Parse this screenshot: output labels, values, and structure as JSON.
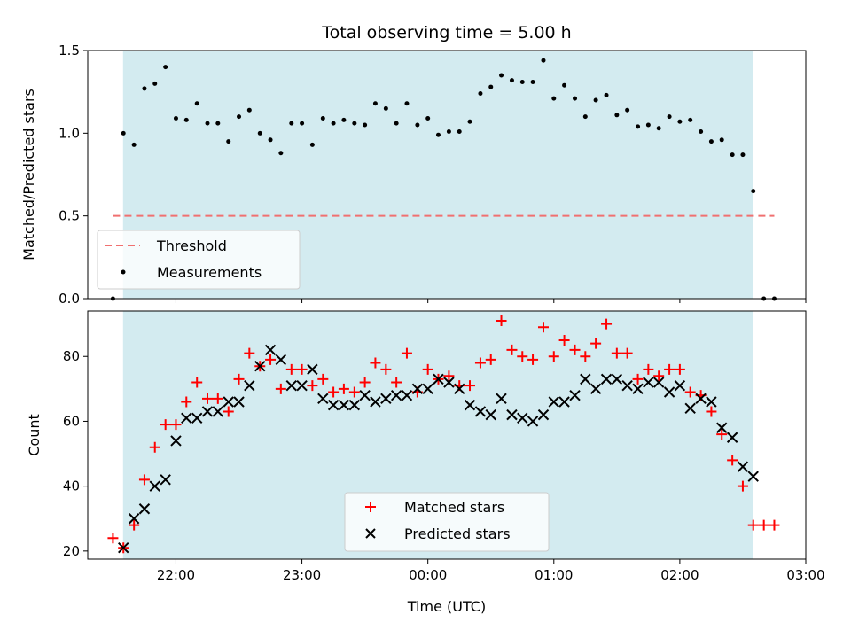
{
  "chart_data": [
    {
      "type": "scatter",
      "panel": "top",
      "title": "Total observing time = 5.00 h",
      "xlabel": "",
      "ylabel": "Matched/Predicted stars",
      "ylim": [
        0,
        1.5
      ],
      "yticks": [
        0,
        0.5,
        1.0,
        1.5
      ],
      "ytick_labels": [
        "0.0",
        "0.5",
        "1.0",
        "1.5"
      ],
      "xlim_hours": [
        21.3,
        27.0
      ],
      "xtick_hours": [
        22,
        23,
        24,
        25,
        26,
        27
      ],
      "shaded_span_hours": [
        21.58,
        26.58
      ],
      "shaded_color": "#d3ebf0",
      "legend_position": "lower-left",
      "threshold": {
        "name": "Threshold",
        "value": 0.5,
        "x_range_hours": [
          21.5,
          26.75
        ],
        "color": "#f07070"
      },
      "series": [
        {
          "name": "Measurements",
          "color": "#000000",
          "x_hours": [
            21.5,
            21.583,
            21.667,
            21.75,
            21.833,
            21.917,
            22.0,
            22.083,
            22.167,
            22.25,
            22.333,
            22.417,
            22.5,
            22.583,
            22.667,
            22.75,
            22.833,
            22.917,
            23.0,
            23.083,
            23.167,
            23.25,
            23.333,
            23.417,
            23.5,
            23.583,
            23.667,
            23.75,
            23.833,
            23.917,
            24.0,
            24.083,
            24.167,
            24.25,
            24.333,
            24.417,
            24.5,
            24.583,
            24.667,
            24.75,
            24.833,
            24.917,
            25.0,
            25.083,
            25.167,
            25.25,
            25.333,
            25.417,
            25.5,
            25.583,
            25.667,
            25.75,
            25.833,
            25.917,
            26.0,
            26.083,
            26.167,
            26.25,
            26.333,
            26.417,
            26.5,
            26.583,
            26.667,
            26.75
          ],
          "y": [
            0.0,
            1.0,
            0.93,
            1.27,
            1.3,
            1.4,
            1.09,
            1.08,
            1.18,
            1.06,
            1.06,
            0.95,
            1.1,
            1.14,
            1.0,
            0.96,
            0.88,
            1.06,
            1.06,
            0.93,
            1.09,
            1.06,
            1.08,
            1.06,
            1.05,
            1.18,
            1.15,
            1.06,
            1.18,
            1.05,
            1.09,
            0.99,
            1.01,
            1.01,
            1.07,
            1.24,
            1.28,
            1.35,
            1.32,
            1.31,
            1.31,
            1.44,
            1.21,
            1.29,
            1.21,
            1.1,
            1.2,
            1.23,
            1.11,
            1.14,
            1.04,
            1.05,
            1.03,
            1.1,
            1.07,
            1.08,
            1.01,
            0.95,
            0.96,
            0.87,
            0.87,
            0.65,
            0.0,
            0.0
          ]
        }
      ]
    },
    {
      "type": "scatter",
      "panel": "bottom",
      "title": "",
      "xlabel": "Time (UTC)",
      "ylabel": "Count",
      "ylim": [
        17.5,
        94
      ],
      "yticks": [
        20,
        40,
        60,
        80
      ],
      "ytick_labels": [
        "20",
        "40",
        "60",
        "80"
      ],
      "xlim_hours": [
        21.3,
        27.0
      ],
      "xtick_hours": [
        22,
        23,
        24,
        25,
        26,
        27
      ],
      "xtick_labels": [
        "22:00",
        "23:00",
        "00:00",
        "01:00",
        "02:00",
        "03:00"
      ],
      "shaded_span_hours": [
        21.58,
        26.58
      ],
      "legend_position": "lower-center",
      "series": [
        {
          "name": "Matched stars",
          "marker": "plus",
          "color": "#ff0000",
          "x_hours": [
            21.5,
            21.583,
            21.667,
            21.75,
            21.833,
            21.917,
            22.0,
            22.083,
            22.167,
            22.25,
            22.333,
            22.417,
            22.5,
            22.583,
            22.667,
            22.75,
            22.833,
            22.917,
            23.0,
            23.083,
            23.167,
            23.25,
            23.333,
            23.417,
            23.5,
            23.583,
            23.667,
            23.75,
            23.833,
            23.917,
            24.0,
            24.083,
            24.167,
            24.25,
            24.333,
            24.417,
            24.5,
            24.583,
            24.667,
            24.75,
            24.833,
            24.917,
            25.0,
            25.083,
            25.167,
            25.25,
            25.333,
            25.417,
            25.5,
            25.583,
            25.667,
            25.75,
            25.833,
            25.917,
            26.0,
            26.083,
            26.167,
            26.25,
            26.333,
            26.417,
            26.5,
            26.583,
            26.667,
            26.75
          ],
          "y": [
            24,
            21,
            28,
            42,
            52,
            59,
            59,
            66,
            72,
            67,
            67,
            63,
            73,
            81,
            77,
            79,
            70,
            76,
            76,
            71,
            73,
            69,
            70,
            69,
            72,
            78,
            76,
            72,
            81,
            69,
            76,
            73,
            74,
            71,
            71,
            78,
            79,
            91,
            82,
            80,
            79,
            89,
            80,
            85,
            82,
            80,
            84,
            90,
            81,
            81,
            73,
            76,
            74,
            76,
            76,
            69,
            68,
            63,
            56,
            48,
            40,
            28,
            28,
            28
          ]
        },
        {
          "name": "Predicted stars",
          "marker": "x",
          "color": "#000000",
          "x_hours": [
            21.583,
            21.667,
            21.75,
            21.833,
            21.917,
            22.0,
            22.083,
            22.167,
            22.25,
            22.333,
            22.417,
            22.5,
            22.583,
            22.667,
            22.75,
            22.833,
            22.917,
            23.0,
            23.083,
            23.167,
            23.25,
            23.333,
            23.417,
            23.5,
            23.583,
            23.667,
            23.75,
            23.833,
            23.917,
            24.0,
            24.083,
            24.167,
            24.25,
            24.333,
            24.417,
            24.5,
            24.583,
            24.667,
            24.75,
            24.833,
            24.917,
            25.0,
            25.083,
            25.167,
            25.25,
            25.333,
            25.417,
            25.5,
            25.583,
            25.667,
            25.75,
            25.833,
            25.917,
            26.0,
            26.083,
            26.167,
            26.25,
            26.333,
            26.417,
            26.5,
            26.583
          ],
          "y": [
            21,
            30,
            33,
            40,
            42,
            54,
            61,
            61,
            63,
            63,
            66,
            66,
            71,
            77,
            82,
            79,
            71,
            71,
            76,
            67,
            65,
            65,
            65,
            68,
            66,
            67,
            68,
            68,
            70,
            70,
            73,
            72,
            70,
            65,
            63,
            62,
            67,
            62,
            61,
            60,
            62,
            66,
            66,
            68,
            73,
            70,
            73,
            73,
            71,
            70,
            72,
            72,
            69,
            71,
            64,
            67,
            66,
            58,
            55,
            46,
            43
          ]
        }
      ]
    }
  ]
}
